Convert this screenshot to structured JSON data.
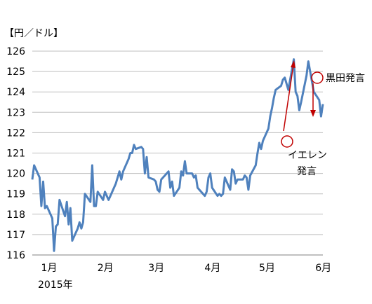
{
  "chart_data": {
    "type": "line",
    "unit_label": "【円／ドル】",
    "year_label": "2015年",
    "ylim": [
      116,
      126
    ],
    "yticks": [
      116,
      117,
      118,
      119,
      120,
      121,
      122,
      123,
      124,
      125,
      126
    ],
    "grid": "horizontal",
    "legend": "none",
    "month_labels": [
      "1月",
      "2月",
      "3月",
      "4月",
      "5月",
      "6月"
    ],
    "x_start": "2015-01-01",
    "x_end": "2015-06-10",
    "series": [
      {
        "color": "#4f81bd",
        "x": [
          "2015-01-01",
          "2015-01-02",
          "2015-01-05",
          "2015-01-06",
          "2015-01-07",
          "2015-01-08",
          "2015-01-09",
          "2015-01-12",
          "2015-01-13",
          "2015-01-14",
          "2015-01-15",
          "2015-01-16",
          "2015-01-19",
          "2015-01-20",
          "2015-01-21",
          "2015-01-22",
          "2015-01-23",
          "2015-01-26",
          "2015-01-27",
          "2015-01-28",
          "2015-01-29",
          "2015-01-30",
          "2015-02-02",
          "2015-02-03",
          "2015-02-04",
          "2015-02-05",
          "2015-02-06",
          "2015-02-09",
          "2015-02-10",
          "2015-02-11",
          "2015-02-12",
          "2015-02-13",
          "2015-02-16",
          "2015-02-17",
          "2015-02-18",
          "2015-02-19",
          "2015-02-20",
          "2015-02-23",
          "2015-02-24",
          "2015-02-25",
          "2015-02-26",
          "2015-02-27",
          "2015-03-02",
          "2015-03-03",
          "2015-03-04",
          "2015-03-05",
          "2015-03-06",
          "2015-03-09",
          "2015-03-10",
          "2015-03-11",
          "2015-03-12",
          "2015-03-13",
          "2015-03-16",
          "2015-03-17",
          "2015-03-18",
          "2015-03-19",
          "2015-03-20",
          "2015-03-23",
          "2015-03-24",
          "2015-03-25",
          "2015-03-26",
          "2015-03-27",
          "2015-03-30",
          "2015-03-31",
          "2015-04-01",
          "2015-04-02",
          "2015-04-03",
          "2015-04-06",
          "2015-04-07",
          "2015-04-08",
          "2015-04-09",
          "2015-04-10",
          "2015-04-13",
          "2015-04-14",
          "2015-04-15",
          "2015-04-16",
          "2015-04-17",
          "2015-04-20",
          "2015-04-21",
          "2015-04-22",
          "2015-04-23",
          "2015-04-24",
          "2015-04-27",
          "2015-04-28",
          "2015-04-29",
          "2015-04-30",
          "2015-05-01",
          "2015-05-04",
          "2015-05-05",
          "2015-05-06",
          "2015-05-07",
          "2015-05-08",
          "2015-05-11",
          "2015-05-12",
          "2015-05-13",
          "2015-05-14",
          "2015-05-15",
          "2015-05-18",
          "2015-05-19",
          "2015-05-20",
          "2015-05-21",
          "2015-05-22",
          "2015-05-25",
          "2015-05-26",
          "2015-05-27",
          "2015-05-28",
          "2015-05-29",
          "2015-06-01",
          "2015-06-02",
          "2015-06-03",
          "2015-06-04",
          "2015-06-05",
          "2015-06-08",
          "2015-06-09",
          "2015-06-10"
        ],
        "y": [
          119.7,
          120.4,
          119.8,
          118.4,
          119.6,
          118.3,
          118.4,
          117.8,
          116.2,
          117.4,
          117.5,
          118.7,
          117.9,
          118.6,
          117.5,
          118.3,
          116.7,
          117.3,
          117.6,
          117.3,
          117.6,
          119.0,
          118.6,
          120.4,
          118.4,
          118.4,
          119.1,
          118.7,
          119.1,
          118.9,
          118.7,
          118.9,
          119.5,
          119.8,
          120.1,
          119.7,
          120.1,
          120.7,
          121.0,
          121.0,
          121.4,
          121.2,
          121.3,
          121.2,
          120.0,
          120.8,
          119.8,
          119.7,
          119.6,
          119.2,
          119.1,
          119.7,
          120.0,
          120.1,
          119.3,
          119.6,
          118.9,
          119.3,
          120.1,
          119.9,
          120.6,
          120.0,
          120.0,
          119.8,
          119.9,
          119.3,
          119.2,
          118.9,
          119.1,
          119.8,
          120.0,
          119.3,
          118.9,
          119.0,
          118.9,
          119.0,
          119.8,
          119.2,
          120.2,
          120.1,
          119.5,
          119.7,
          119.7,
          119.9,
          119.8,
          119.2,
          119.9,
          120.4,
          121.0,
          121.5,
          121.2,
          121.6,
          122.2,
          122.8,
          123.2,
          123.7,
          124.1,
          124.3,
          124.6,
          124.7,
          124.4,
          124.1,
          125.6,
          124.0,
          123.8,
          123.1,
          123.5,
          124.8,
          125.5,
          125.0,
          124.5,
          124.0,
          123.6,
          122.8,
          123.4
        ],
        "y_note": "shape approximated from image"
      }
    ],
    "annotations": [
      {
        "text": "黒田発言"
      },
      {
        "text_line1": "イエレン",
        "text_line2": "発言"
      }
    ]
  }
}
